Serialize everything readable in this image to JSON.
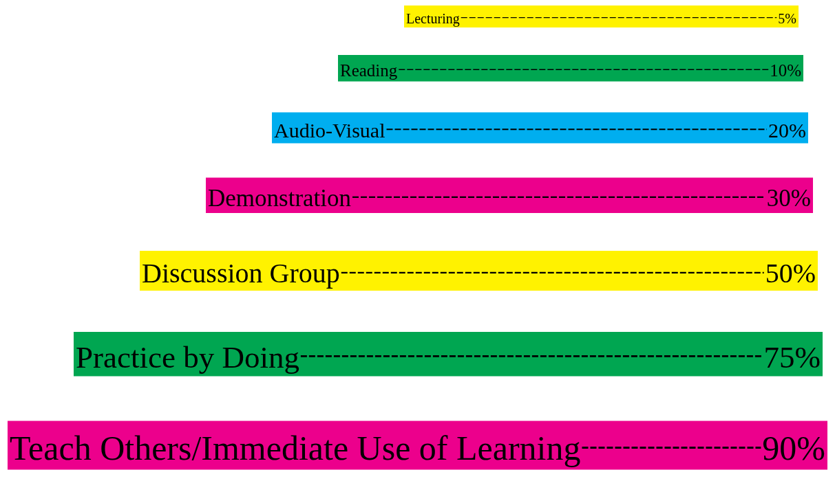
{
  "chart_data": {
    "type": "other",
    "categories": [
      "Lecturing",
      "Reading",
      "Audio-Visual",
      "Demonstration",
      "Discussion Group",
      "Practice by Doing",
      "Teach Others/Immediate Use of Learning"
    ],
    "values": [
      5,
      10,
      20,
      30,
      50,
      75,
      90
    ],
    "value_labels": [
      "5%",
      "10%",
      "20%",
      "30%",
      "50%",
      "75%",
      "90%"
    ],
    "colors": [
      "#fff200",
      "#00a651",
      "#00aeef",
      "#ec008c",
      "#fff200",
      "#00a651",
      "#ec008c"
    ]
  }
}
